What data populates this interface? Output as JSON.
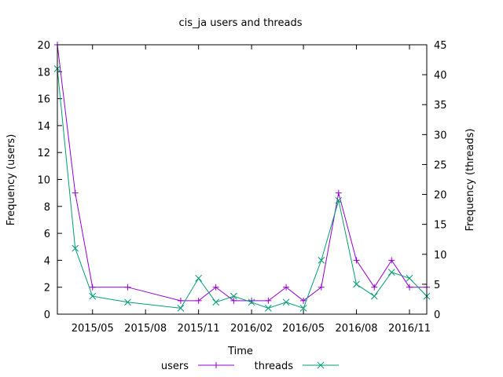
{
  "chart_data": {
    "type": "line",
    "title": "cis_ja users and threads",
    "xlabel": "Time",
    "ylabel_left": "Frequency (users)",
    "ylabel_right": "Frequency (threads)",
    "xlim": [
      "2015-03-01",
      "2016-12-01"
    ],
    "ylim_left": [
      0,
      20
    ],
    "ylim_right": [
      0,
      45
    ],
    "x_ticks": [
      {
        "date": "2015-05-01",
        "label": "2015/05"
      },
      {
        "date": "2015-08-01",
        "label": "2015/08"
      },
      {
        "date": "2015-11-01",
        "label": "2015/11"
      },
      {
        "date": "2016-02-01",
        "label": "2016/02"
      },
      {
        "date": "2016-05-01",
        "label": "2016/05"
      },
      {
        "date": "2016-08-01",
        "label": "2016/08"
      },
      {
        "date": "2016-11-01",
        "label": "2016/11"
      }
    ],
    "y_ticks_left": [
      "0",
      "2",
      "4",
      "6",
      "8",
      "10",
      "12",
      "14",
      "16",
      "18",
      "20"
    ],
    "y_ticks_right": [
      "0",
      "5",
      "10",
      "15",
      "20",
      "25",
      "30",
      "35",
      "40",
      "45"
    ],
    "legend_position": "bottom-center",
    "grid": false,
    "series": [
      {
        "name": "users",
        "axis": "left",
        "color": "#9400d3",
        "marker": "plus",
        "points": [
          [
            "2015-03-01",
            20
          ],
          [
            "2015-04-01",
            9
          ],
          [
            "2015-05-01",
            2
          ],
          [
            "2015-07-01",
            2
          ],
          [
            "2015-10-01",
            1
          ],
          [
            "2015-11-01",
            1
          ],
          [
            "2015-12-01",
            2
          ],
          [
            "2016-01-01",
            1
          ],
          [
            "2016-02-01",
            1
          ],
          [
            "2016-03-01",
            1
          ],
          [
            "2016-04-01",
            2
          ],
          [
            "2016-05-01",
            1
          ],
          [
            "2016-06-01",
            2
          ],
          [
            "2016-07-01",
            9
          ],
          [
            "2016-08-01",
            4
          ],
          [
            "2016-09-01",
            2
          ],
          [
            "2016-10-01",
            4
          ],
          [
            "2016-11-01",
            2
          ],
          [
            "2016-12-01",
            2
          ]
        ]
      },
      {
        "name": "threads",
        "axis": "right",
        "color": "#009e73",
        "marker": "cross",
        "points": [
          [
            "2015-03-01",
            41
          ],
          [
            "2015-04-01",
            11
          ],
          [
            "2015-05-01",
            3
          ],
          [
            "2015-07-01",
            2
          ],
          [
            "2015-10-01",
            1
          ],
          [
            "2015-11-01",
            6
          ],
          [
            "2015-12-01",
            2
          ],
          [
            "2016-01-01",
            3
          ],
          [
            "2016-02-01",
            2
          ],
          [
            "2016-03-01",
            1
          ],
          [
            "2016-04-01",
            2
          ],
          [
            "2016-05-01",
            1
          ],
          [
            "2016-06-01",
            9
          ],
          [
            "2016-07-01",
            19
          ],
          [
            "2016-08-01",
            5
          ],
          [
            "2016-09-01",
            3
          ],
          [
            "2016-10-01",
            7
          ],
          [
            "2016-11-01",
            6
          ],
          [
            "2016-12-01",
            3
          ]
        ]
      }
    ]
  }
}
